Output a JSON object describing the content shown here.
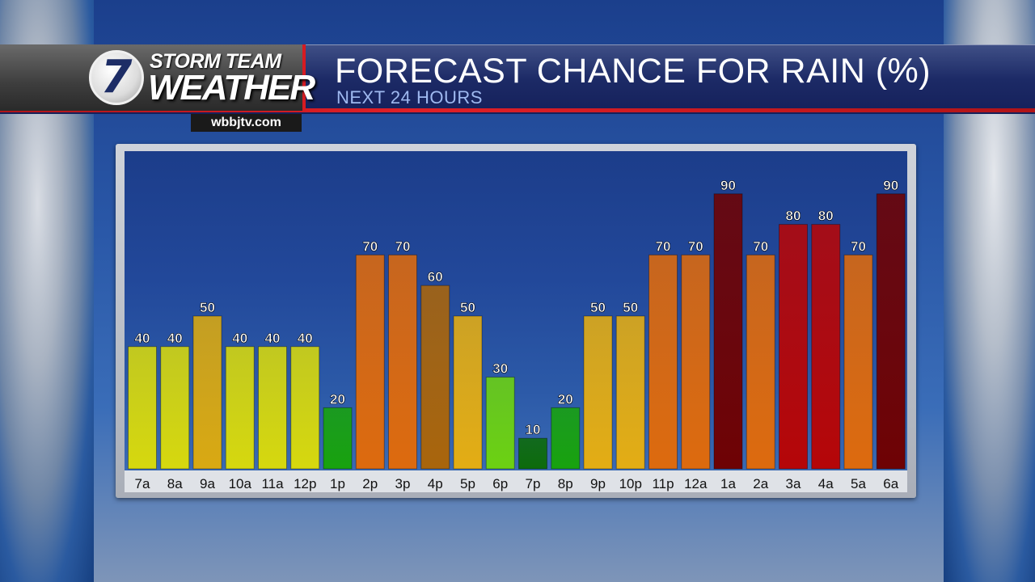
{
  "branding": {
    "logo_number": "7",
    "logo_top": "STORM TEAM",
    "logo_bottom": "WEATHER",
    "website": "wbbjtv.com"
  },
  "header": {
    "title": "FORECAST CHANCE FOR RAIN (%)",
    "subtitle": "NEXT 24 HOURS"
  },
  "chart_data": {
    "type": "bar",
    "title": "FORECAST CHANCE FOR RAIN (%)",
    "subtitle": "NEXT 24 HOURS",
    "xlabel": "",
    "ylabel": "",
    "ylim": [
      0,
      100
    ],
    "grid": false,
    "categories": [
      "7a",
      "8a",
      "9a",
      "10a",
      "11a",
      "12p",
      "1p",
      "2p",
      "3p",
      "4p",
      "5p",
      "6p",
      "7p",
      "8p",
      "9p",
      "10p",
      "11p",
      "12a",
      "1a",
      "2a",
      "3a",
      "4a",
      "5a",
      "6a"
    ],
    "values": [
      40,
      40,
      50,
      40,
      40,
      40,
      20,
      70,
      70,
      60,
      50,
      30,
      10,
      20,
      50,
      50,
      70,
      70,
      90,
      70,
      80,
      80,
      70,
      90
    ],
    "colors": [
      "#d6d80e",
      "#d6d80e",
      "#d9a912",
      "#d6d80e",
      "#d6d80e",
      "#d6d80e",
      "#18a20e",
      "#dd6a0e",
      "#dd6a0e",
      "#a9650c",
      "#e3ad14",
      "#6cd112",
      "#0d6b0b",
      "#18a20e",
      "#e3ad14",
      "#e3ad14",
      "#dd6a0e",
      "#dd6a0e",
      "#6e0204",
      "#dd6a0e",
      "#b50608",
      "#b50608",
      "#dd6a0e",
      "#6e0204"
    ]
  }
}
